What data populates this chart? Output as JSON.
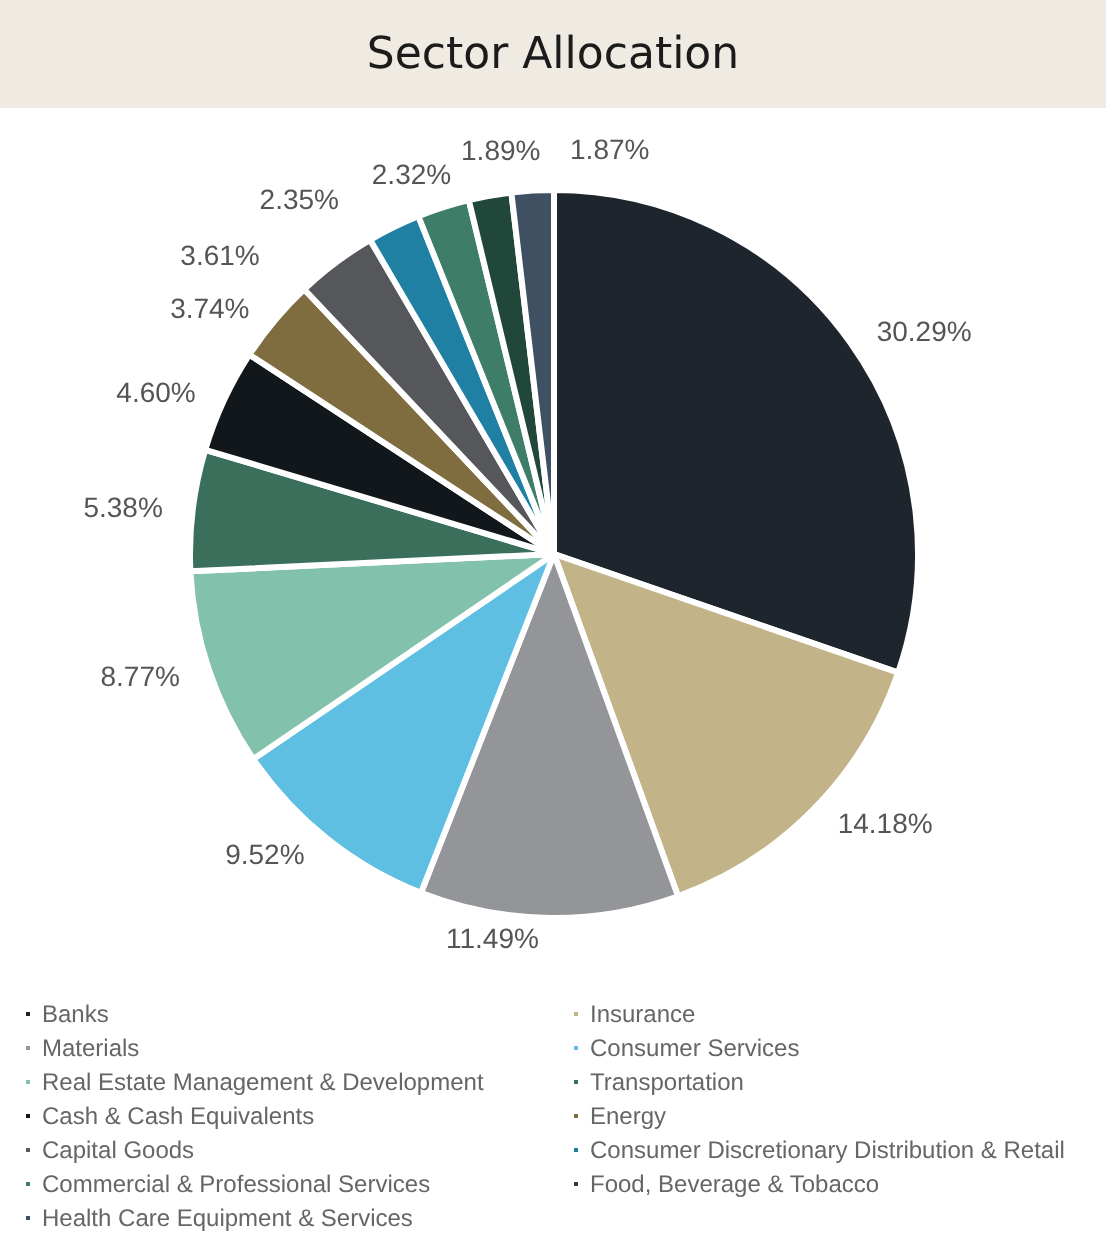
{
  "chart_data": {
    "type": "pie",
    "title": "Sector Allocation",
    "categories": [
      "Banks",
      "Insurance",
      "Materials",
      "Consumer Services",
      "Real Estate Management & Development",
      "Transportation",
      "Cash & Cash Equivalents",
      "Energy",
      "Capital Goods",
      "Consumer Discretionary Distribution & Retail",
      "Commercial & Professional Services",
      "Food, Beverage & Tobacco",
      "Health Care Equipment & Services"
    ],
    "values": [
      30.29,
      14.18,
      11.49,
      9.52,
      8.77,
      5.38,
      4.6,
      3.74,
      3.61,
      2.35,
      2.32,
      1.89,
      1.87
    ],
    "value_labels": [
      "30.29%",
      "14.18%",
      "11.49%",
      "9.52%",
      "8.77%",
      "5.38%",
      "4.60%",
      "3.74%",
      "3.61%",
      "2.35%",
      "2.32%",
      "1.89%",
      "1.87%"
    ],
    "colors": [
      "#1e252d",
      "#c3b389",
      "#939598",
      "#5fbfe3",
      "#82c1ac",
      "#3a6f5c",
      "#12171c",
      "#7f6c3f",
      "#56575b",
      "#1f80a3",
      "#3e7d68",
      "#21473a",
      "#3f5062"
    ],
    "legend": "bottom"
  }
}
